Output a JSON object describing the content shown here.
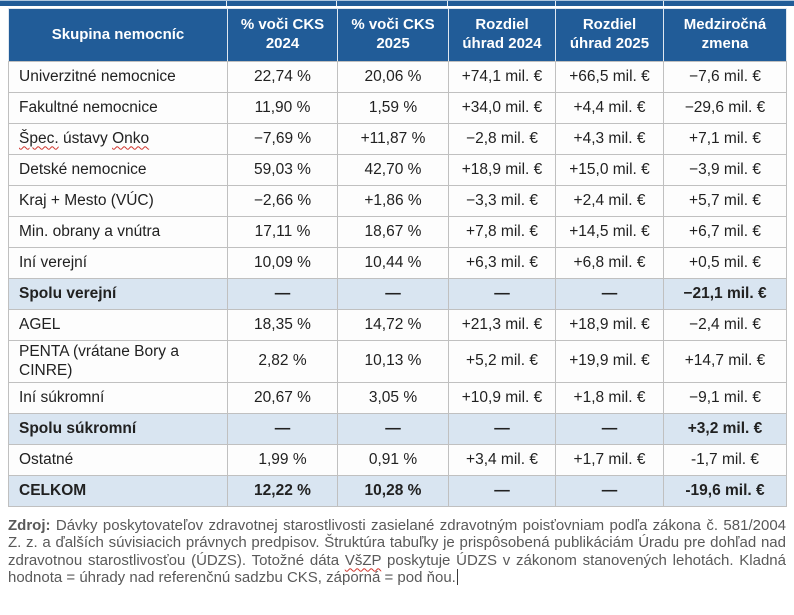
{
  "colors": {
    "header_bg": "#215C98",
    "summary_bg": "#D9E5F1",
    "border": "#C0C0C0",
    "spellcheck_red": "#D0342C",
    "footer_text": "#595959"
  },
  "table": {
    "columns": [
      "Skupina nemocníc",
      "% voči CKS 2024",
      "% voči CKS 2025",
      "Rozdiel úhrad 2024",
      "Rozdiel úhrad 2025",
      "Medziročná zmena"
    ],
    "rows": [
      {
        "type": "data",
        "label": "Univerzitné nemocnice",
        "values": [
          "22,74 %",
          "20,06 %",
          "+74,1 mil. €",
          "+66,5 mil. €",
          "−7,6 mil. €"
        ]
      },
      {
        "type": "data",
        "label": "Fakultné nemocnice",
        "values": [
          "11,90 %",
          "1,59 %",
          "+34,0 mil. €",
          "+4,4 mil. €",
          "−29,6 mil. €"
        ]
      },
      {
        "type": "data",
        "label": "Špec. ústavy Onko",
        "label_parts": [
          {
            "t": "Špec.",
            "spell": true
          },
          {
            "t": " ústavy ",
            "spell": false
          },
          {
            "t": "Onko",
            "spell": true
          }
        ],
        "values": [
          "−7,69 %",
          "+11,87 %",
          "−2,8 mil. €",
          "+4,3 mil. €",
          "+7,1 mil. €"
        ]
      },
      {
        "type": "data",
        "label": "Detské nemocnice",
        "values": [
          "59,03 %",
          "42,70 %",
          "+18,9 mil. €",
          "+15,0 mil. €",
          "−3,9 mil. €"
        ]
      },
      {
        "type": "data",
        "label": "Kraj + Mesto (VÚC)",
        "values": [
          "−2,66 %",
          "+1,86 %",
          "−3,3 mil. €",
          "+2,4 mil. €",
          "+5,7 mil. €"
        ]
      },
      {
        "type": "data",
        "label": "Min. obrany a vnútra",
        "values": [
          "17,11 %",
          "18,67 %",
          "+7,8 mil. €",
          "+14,5 mil. €",
          "+6,7 mil. €"
        ]
      },
      {
        "type": "data",
        "label": "Iní verejní",
        "values": [
          "10,09 %",
          "10,44 %",
          "+6,3 mil. €",
          "+6,8 mil. €",
          "+0,5 mil. €"
        ]
      },
      {
        "type": "summary",
        "label": "Spolu verejní",
        "values": [
          "—",
          "—",
          "—",
          "—",
          "−21,1 mil. €"
        ]
      },
      {
        "type": "data",
        "label": "AGEL",
        "values": [
          "18,35 %",
          "14,72 %",
          "+21,3 mil. €",
          "+18,9 mil. €",
          "−2,4 mil. €"
        ]
      },
      {
        "type": "data",
        "label": "PENTA (vrátane Bory a CINRE)",
        "values": [
          "2,82 %",
          "10,13 %",
          "+5,2 mil. €",
          "+19,9 mil. €",
          "+14,7 mil. €"
        ]
      },
      {
        "type": "data",
        "label": "Iní súkromní",
        "values": [
          "20,67 %",
          "3,05 %",
          "+10,9 mil. €",
          "+1,8 mil. €",
          "−9,1 mil. €"
        ]
      },
      {
        "type": "summary",
        "label": "Spolu súkromní",
        "values": [
          "—",
          "—",
          "—",
          "—",
          "+3,2 mil. €"
        ]
      },
      {
        "type": "data",
        "label": "Ostatné",
        "values": [
          "1,99 %",
          "0,91 %",
          "+3,4 mil. €",
          "+1,7 mil. €",
          "-1,7 mil. €"
        ]
      },
      {
        "type": "summary",
        "label": "CELKOM",
        "values": [
          "12,22 %",
          "10,28 %",
          "—",
          "—",
          "-19,6 mil. €"
        ]
      }
    ]
  },
  "footer": {
    "label": "Zdroj:",
    "text_before": " Dávky poskytovateľov zdravotnej starostlivosti zasielané zdravotným poisťovniam podľa zákona č. 581/2004 Z. z. a ďalších súvisiacich právnych predpisov. Štruktúra tabuľky je prispôsobená publikáciám Úradu pre dohľad nad zdravotnou starostlivosťou (ÚDZS). Totožné dáta ",
    "misspelled": "VšZP",
    "text_after": " poskytuje ÚDZS v zákonom stanovených lehotách. Kladná hodnota = úhrady nad referenčnú sadzbu CKS, záporná = pod ňou."
  }
}
